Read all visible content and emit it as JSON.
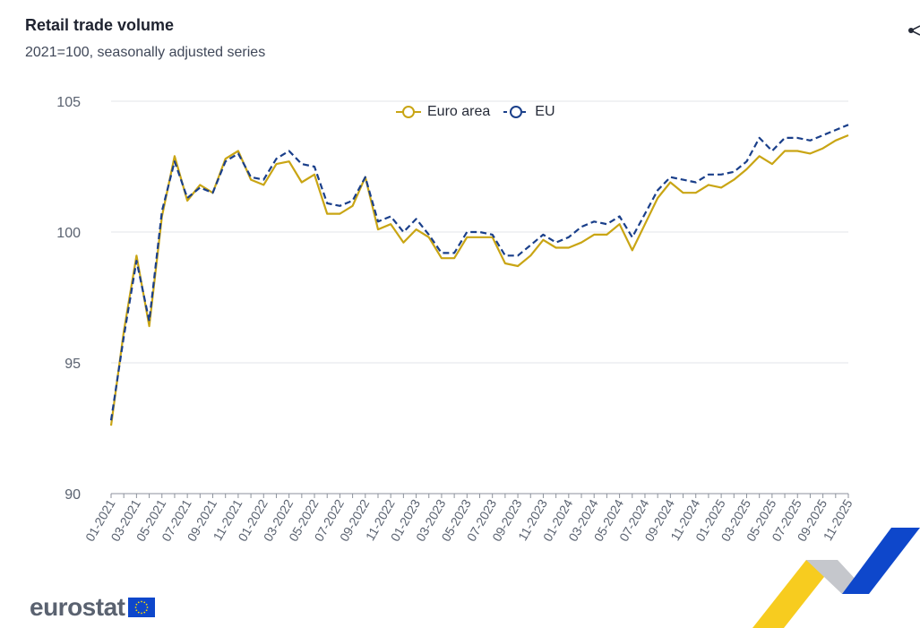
{
  "header": {
    "title": "Retail trade volume",
    "subtitle": "2021=100, seasonally adjusted series"
  },
  "legend": {
    "euro_area": "Euro area",
    "eu": "EU"
  },
  "colors": {
    "euro_area": "#c9a514",
    "eu": "#1a3f8a",
    "grid": "#e3e5e9",
    "axis": "#8c929c",
    "tick_text": "#5a6270"
  },
  "logo": {
    "text": "eurostat",
    "icon": "eu-flag-icon"
  },
  "share_icon": "share-icon",
  "chart_data": {
    "type": "line",
    "title": "Retail trade volume",
    "subtitle": "2021=100, seasonally adjusted series",
    "xlabel": "",
    "ylabel": "",
    "ylim": [
      90,
      105
    ],
    "yticks": [
      90,
      95,
      100,
      105
    ],
    "grid": true,
    "legend_position": "top-center",
    "x": [
      "01-2021",
      "02-2021",
      "03-2021",
      "04-2021",
      "05-2021",
      "06-2021",
      "07-2021",
      "08-2021",
      "09-2021",
      "10-2021",
      "11-2021",
      "12-2021",
      "01-2022",
      "02-2022",
      "03-2022",
      "04-2022",
      "05-2022",
      "06-2022",
      "07-2022",
      "08-2022",
      "09-2022",
      "10-2022",
      "11-2022",
      "12-2022",
      "01-2023",
      "02-2023",
      "03-2023",
      "04-2023",
      "05-2023",
      "06-2023",
      "07-2023",
      "08-2023",
      "09-2023",
      "10-2023",
      "11-2023",
      "12-2023",
      "01-2024",
      "02-2024",
      "03-2024",
      "04-2024",
      "05-2024",
      "06-2024",
      "07-2024",
      "08-2024",
      "09-2024",
      "10-2024",
      "11-2024",
      "12-2024",
      "01-2025",
      "02-2025",
      "03-2025",
      "04-2025",
      "05-2025",
      "06-2025",
      "07-2025",
      "08-2025",
      "09-2025",
      "10-2025",
      "11-2025"
    ],
    "x_tick_labels": [
      "01-2021",
      "03-2021",
      "05-2021",
      "07-2021",
      "09-2021",
      "11-2021",
      "01-2022",
      "03-2022",
      "05-2022",
      "07-2022",
      "09-2022",
      "11-2022",
      "01-2023",
      "03-2023",
      "05-2023",
      "07-2023",
      "09-2023",
      "11-2023",
      "01-2024",
      "03-2024",
      "05-2024",
      "07-2024",
      "09-2024",
      "11-2024",
      "01-2025",
      "03-2025",
      "05-2025",
      "07-2025",
      "09-2025",
      "11-2025"
    ],
    "series": [
      {
        "name": "Euro area",
        "style": "solid",
        "values": [
          92.6,
          96.2,
          99.1,
          96.4,
          100.6,
          102.9,
          101.2,
          101.8,
          101.5,
          102.8,
          103.1,
          102.0,
          101.8,
          102.6,
          102.7,
          101.9,
          102.2,
          100.7,
          100.7,
          101.0,
          102.1,
          100.1,
          100.3,
          99.6,
          100.1,
          99.8,
          99.0,
          99.0,
          99.8,
          99.8,
          99.8,
          98.8,
          98.7,
          99.1,
          99.7,
          99.4,
          99.4,
          99.6,
          99.9,
          99.9,
          100.3,
          99.3,
          100.3,
          101.3,
          101.9,
          101.5,
          101.5,
          101.8,
          101.7,
          102.0,
          102.4,
          102.9,
          102.6,
          103.1,
          103.1,
          103.0,
          103.2,
          103.5,
          103.7
        ]
      },
      {
        "name": "EU",
        "style": "dashed",
        "values": [
          92.8,
          96.0,
          98.9,
          96.6,
          100.8,
          102.7,
          101.3,
          101.7,
          101.5,
          102.7,
          103.0,
          102.1,
          102.0,
          102.8,
          103.1,
          102.6,
          102.5,
          101.1,
          101.0,
          101.2,
          102.1,
          100.4,
          100.6,
          100.0,
          100.5,
          99.9,
          99.2,
          99.2,
          100.0,
          100.0,
          99.9,
          99.1,
          99.1,
          99.5,
          99.9,
          99.6,
          99.8,
          100.2,
          100.4,
          100.3,
          100.6,
          99.8,
          100.7,
          101.6,
          102.1,
          102.0,
          101.9,
          102.2,
          102.2,
          102.3,
          102.7,
          103.6,
          103.1,
          103.6,
          103.6,
          103.5,
          103.7,
          103.9,
          104.1
        ]
      }
    ]
  }
}
